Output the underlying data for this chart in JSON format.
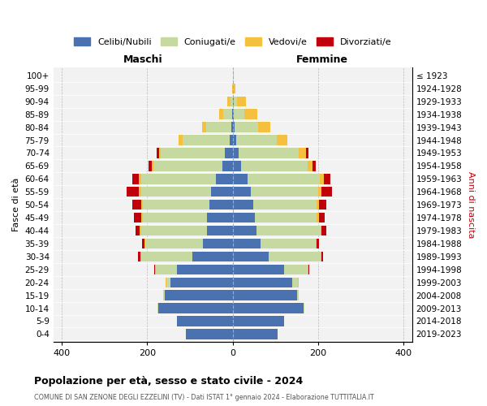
{
  "age_groups": [
    "0-4",
    "5-9",
    "10-14",
    "15-19",
    "20-24",
    "25-29",
    "30-34",
    "35-39",
    "40-44",
    "45-49",
    "50-54",
    "55-59",
    "60-64",
    "65-69",
    "70-74",
    "75-79",
    "80-84",
    "85-89",
    "90-94",
    "95-99",
    "100+"
  ],
  "birth_years": [
    "2019-2023",
    "2014-2018",
    "2009-2013",
    "2004-2008",
    "1999-2003",
    "1994-1998",
    "1989-1993",
    "1984-1988",
    "1979-1983",
    "1974-1978",
    "1969-1973",
    "1964-1968",
    "1959-1963",
    "1954-1958",
    "1949-1953",
    "1944-1948",
    "1939-1943",
    "1934-1938",
    "1929-1933",
    "1924-1928",
    "≤ 1923"
  ],
  "colors": {
    "celibi": "#4a72b0",
    "coniugati": "#c5d9a0",
    "vedovi": "#f5c040",
    "divorziati": "#c0000b"
  },
  "maschi": {
    "celibi": [
      110,
      130,
      175,
      160,
      145,
      130,
      95,
      70,
      60,
      60,
      55,
      50,
      40,
      25,
      18,
      8,
      4,
      2,
      0,
      0,
      0
    ],
    "coniugati": [
      0,
      0,
      2,
      2,
      10,
      50,
      120,
      135,
      155,
      150,
      155,
      165,
      175,
      160,
      150,
      110,
      58,
      20,
      5,
      0,
      0
    ],
    "vedovi": [
      0,
      0,
      0,
      0,
      2,
      2,
      2,
      2,
      3,
      4,
      5,
      5,
      5,
      5,
      5,
      8,
      10,
      10,
      8,
      2,
      0
    ],
    "divorziati": [
      0,
      0,
      0,
      0,
      0,
      2,
      5,
      5,
      10,
      18,
      20,
      28,
      15,
      8,
      5,
      0,
      0,
      0,
      0,
      0,
      0
    ]
  },
  "femmine": {
    "celibi": [
      105,
      120,
      165,
      150,
      140,
      120,
      85,
      65,
      55,
      52,
      48,
      42,
      35,
      20,
      14,
      8,
      4,
      2,
      2,
      0,
      0
    ],
    "coniugati": [
      0,
      0,
      2,
      4,
      12,
      55,
      120,
      130,
      150,
      145,
      148,
      158,
      168,
      155,
      140,
      95,
      55,
      25,
      8,
      2,
      0
    ],
    "vedovi": [
      0,
      0,
      0,
      0,
      2,
      2,
      2,
      2,
      3,
      4,
      5,
      8,
      10,
      12,
      18,
      25,
      28,
      30,
      20,
      5,
      0
    ],
    "divorziati": [
      0,
      0,
      0,
      0,
      0,
      2,
      5,
      5,
      10,
      15,
      18,
      25,
      15,
      8,
      5,
      0,
      0,
      0,
      0,
      0,
      0
    ]
  },
  "xlim": 420,
  "xticks": [
    -400,
    -200,
    0,
    200,
    400
  ],
  "title": "Popolazione per età, sesso e stato civile - 2024",
  "subtitle": "COMUNE DI SAN ZENONE DEGLI EZZELINI (TV) - Dati ISTAT 1° gennaio 2024 - Elaborazione TUTTITALIA.IT",
  "ylabel": "Fasce di età",
  "ylabel_right": "Anni di nascita",
  "bg_color": "#ffffff",
  "plot_bg": "#f2f2f2",
  "grid_color": "#bbbbbb"
}
